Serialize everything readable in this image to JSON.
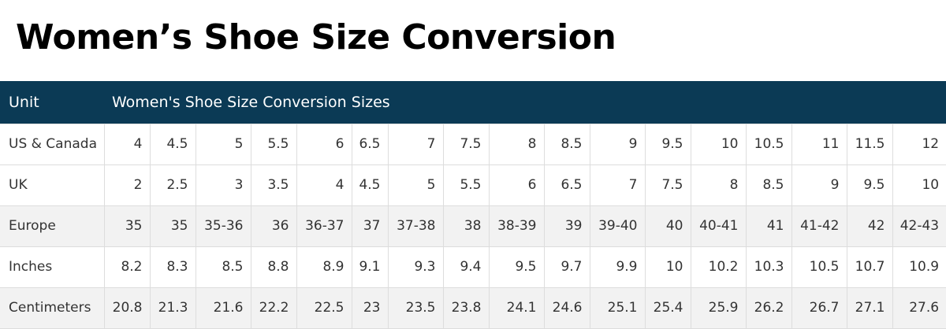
{
  "header": {
    "title": "Women’s Shoe Size Conversion"
  },
  "table": {
    "columns": [
      "Unit",
      "Women's Shoe Size Conversion Sizes"
    ],
    "rows": [
      [
        "US & Canada",
        4,
        4.5,
        5,
        5.5,
        6,
        6.5,
        7,
        7.5,
        8,
        8.5,
        9,
        9.5,
        10,
        10.5,
        11,
        11.5,
        12
      ],
      [
        "UK",
        2,
        2.5,
        3,
        3.5,
        4,
        4.5,
        5,
        5.5,
        6,
        6.5,
        7,
        7.5,
        8,
        8.5,
        9,
        9.5,
        10
      ],
      [
        "Europe",
        35,
        35,
        "35-36",
        36,
        "36-37",
        37,
        "37-38",
        38,
        "38-39",
        39,
        "39-40",
        40,
        "40-41",
        41,
        "41-42",
        42,
        "42-43"
      ],
      [
        "Inches",
        8.2,
        8.3,
        8.5,
        8.8,
        8.9,
        9.1,
        9.3,
        9.4,
        9.5,
        9.7,
        9.9,
        10,
        10.2,
        10.3,
        10.5,
        10.7,
        10.9
      ],
      [
        "Centimeters",
        20.8,
        21.3,
        21.6,
        22.2,
        22.5,
        23,
        23.5,
        23.8,
        24.1,
        24.6,
        25.1,
        25.4,
        25.9,
        26.2,
        26.7,
        27.1,
        27.6
      ]
    ]
  }
}
